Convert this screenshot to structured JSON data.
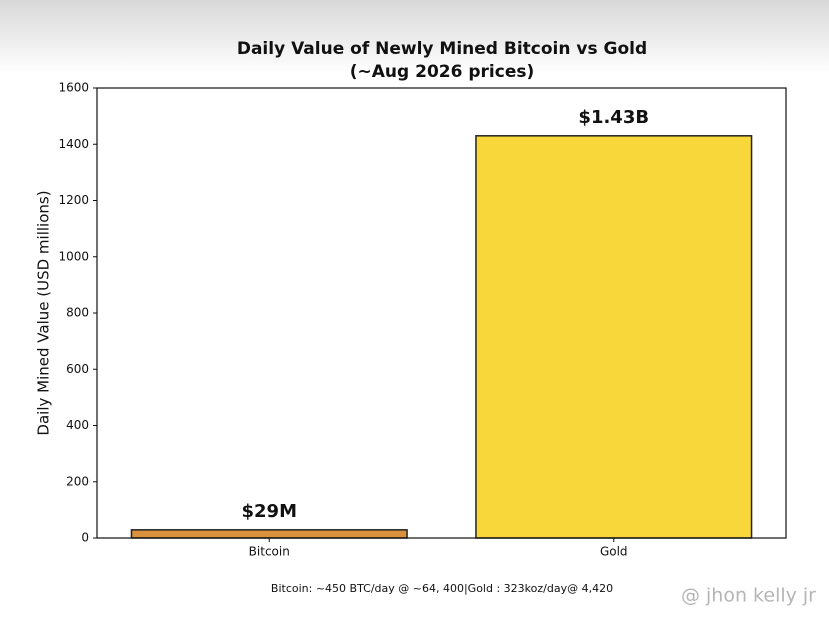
{
  "chart_data": {
    "type": "bar",
    "title": "Daily Value of Newly Mined Bitcoin vs Gold",
    "subtitle": "(~Aug 2026 prices)",
    "y_label": "Daily Mined Value (USD millions)",
    "categories": [
      "Bitcoin",
      "Gold"
    ],
    "values": [
      29,
      1430
    ],
    "value_labels": [
      "$29M",
      "$1.43B"
    ],
    "colors": [
      "#d9913e",
      "#f8d73a"
    ],
    "ylim": [
      0,
      1600
    ],
    "yticks": [
      0,
      200,
      400,
      600,
      800,
      1000,
      1200,
      1400,
      1600
    ],
    "grid": false,
    "footnote": "Bitcoin: ~450 BTC/day @ ~64, 400|Gold :  323koz/day@ 4,420",
    "watermark": "@ jhon kelly jr"
  }
}
